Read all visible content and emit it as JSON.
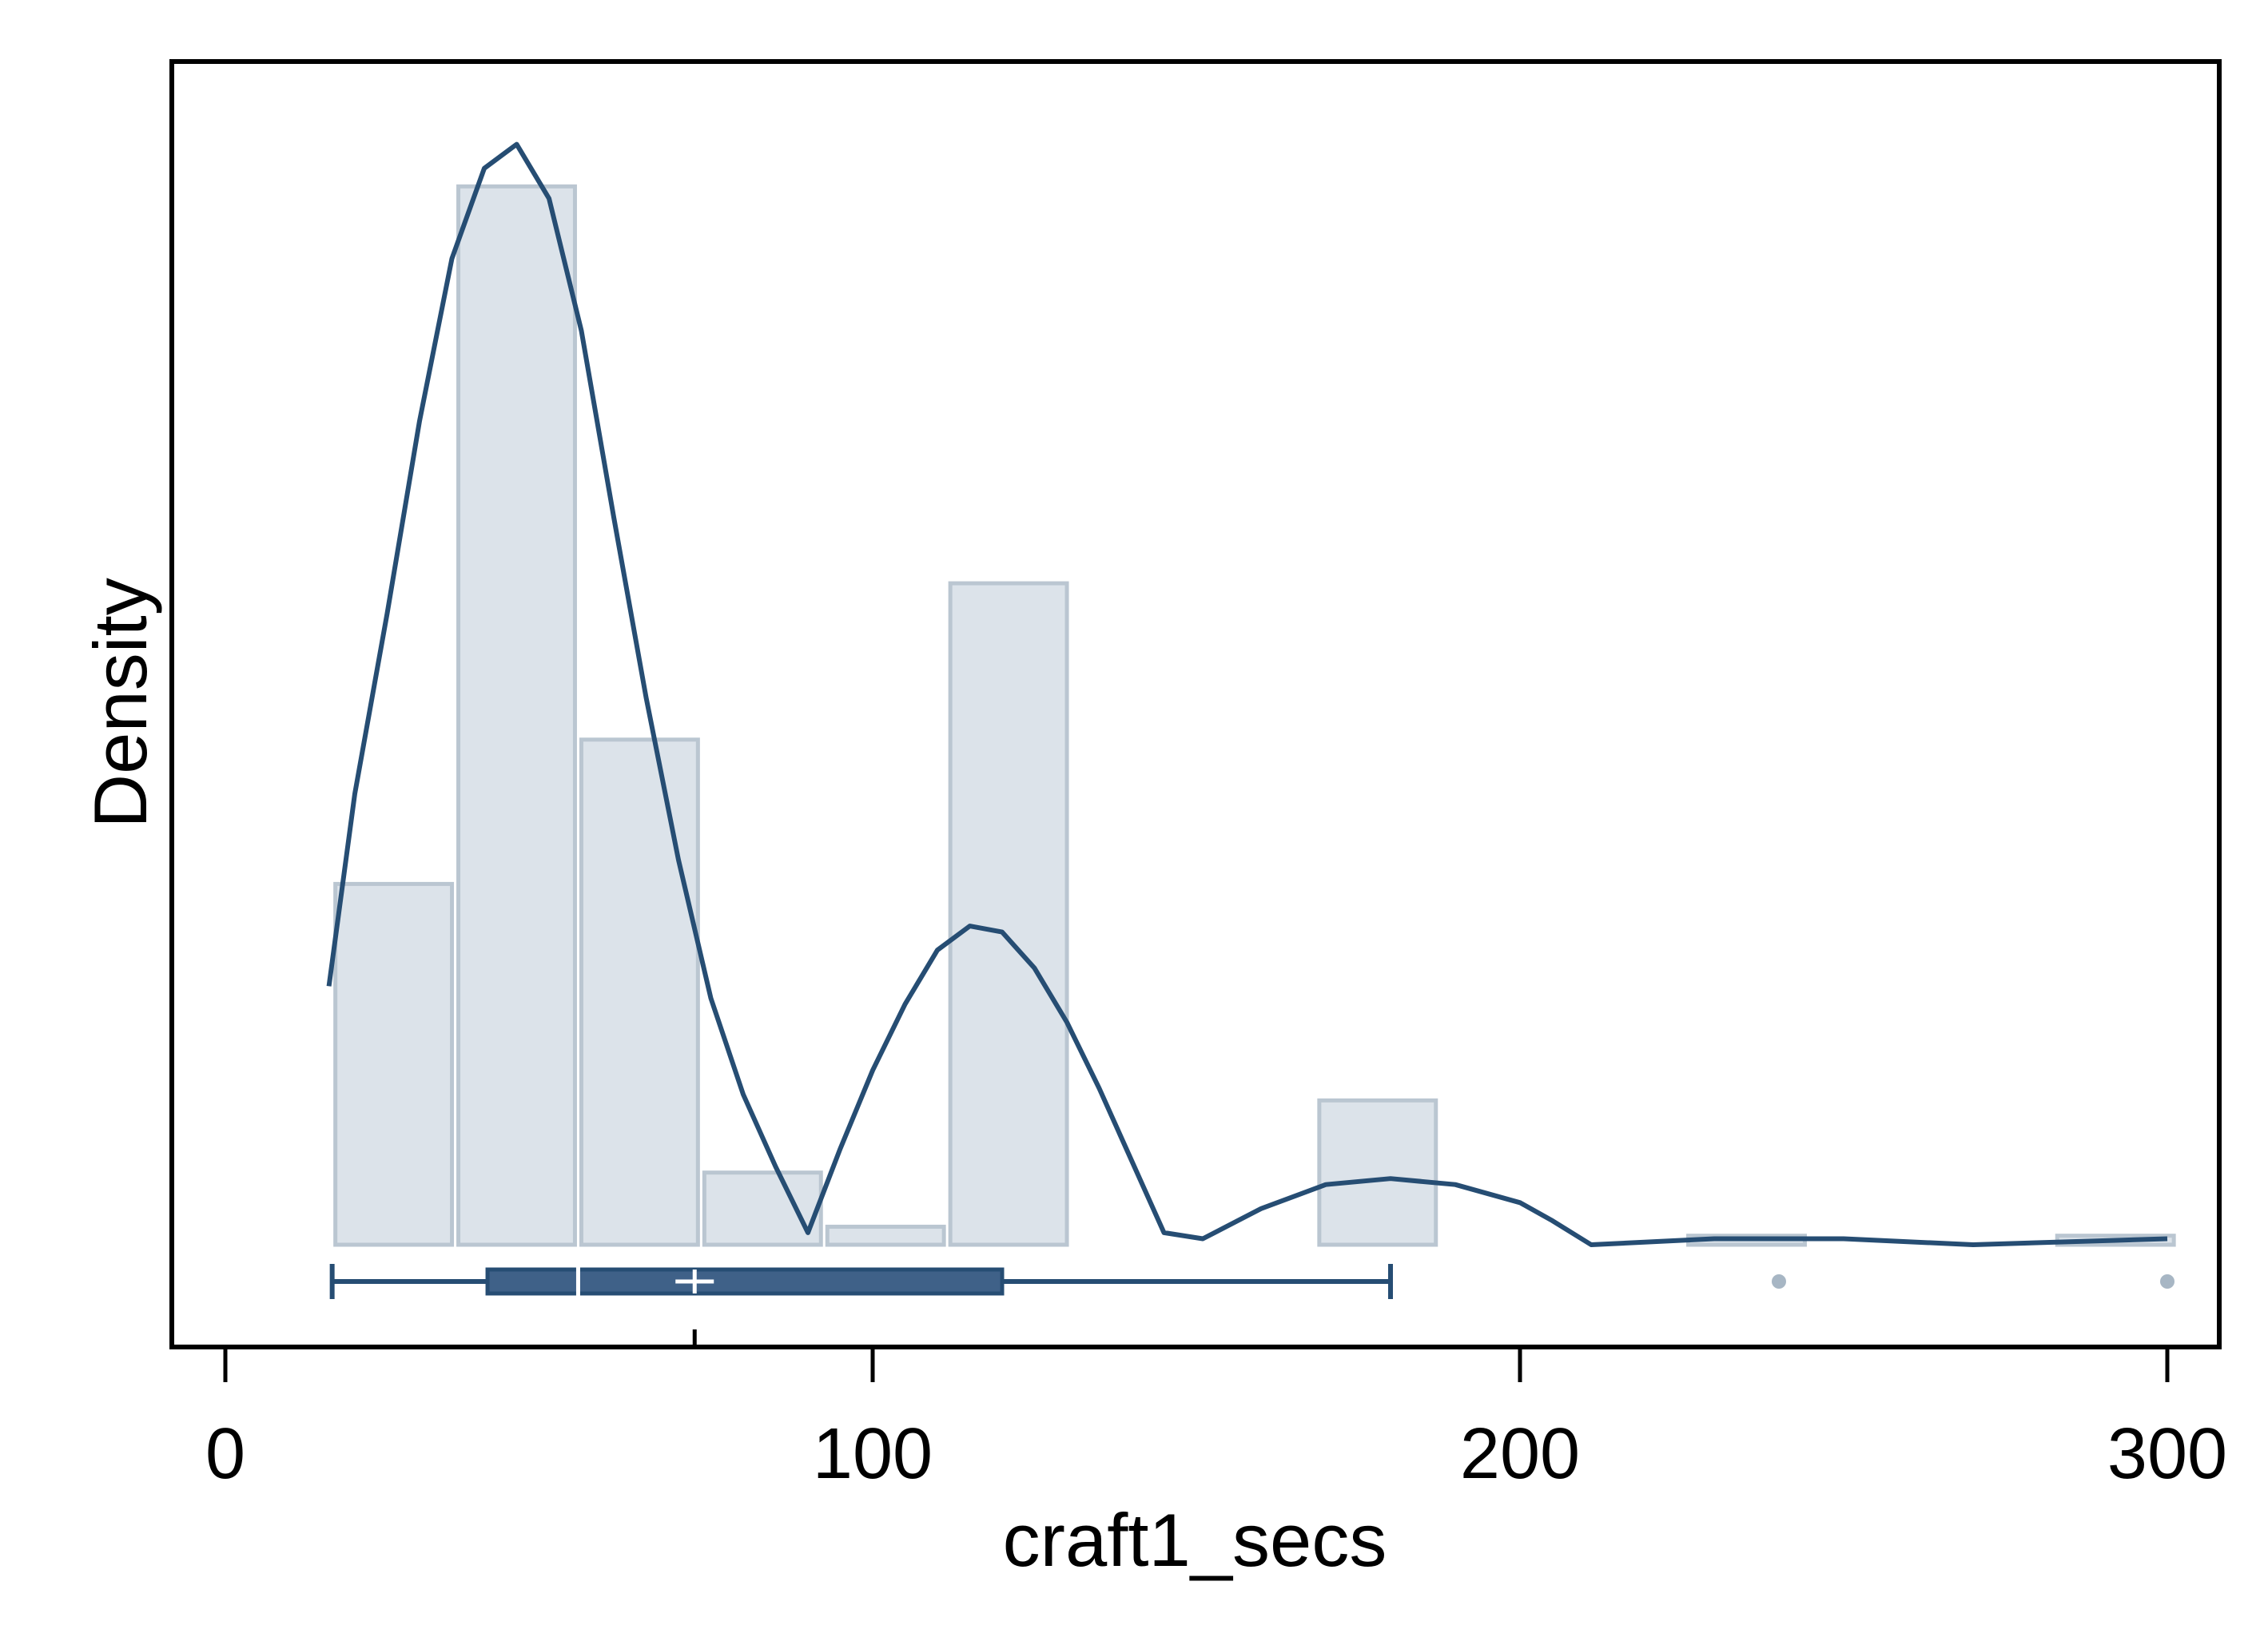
{
  "chart_data": {
    "type": "histogram",
    "xlabel": "craft1_secs",
    "ylabel": "Density",
    "xlim": [
      -8,
      308
    ],
    "x_ticks": [
      0,
      100,
      200,
      300
    ],
    "x_tick_labels": [
      "0",
      "100",
      "200",
      "300"
    ],
    "y_tick_labels_shown": false,
    "grid": false,
    "legend": "none",
    "histogram": {
      "bins": [
        {
          "start": 16.5,
          "end": 35.5,
          "density": 0.006
        },
        {
          "start": 35.5,
          "end": 54.5,
          "density": 0.0176
        },
        {
          "start": 54.5,
          "end": 73.5,
          "density": 0.0084
        },
        {
          "start": 73.5,
          "end": 92.5,
          "density": 0.0012
        },
        {
          "start": 92.5,
          "end": 111.5,
          "density": 0.0003
        },
        {
          "start": 111.5,
          "end": 130.5,
          "density": 0.011
        },
        {
          "start": 130.5,
          "end": 149.5,
          "density": 0.0
        },
        {
          "start": 149.5,
          "end": 168.5,
          "density": 0.0
        },
        {
          "start": 168.5,
          "end": 187.5,
          "density": 0.0024
        },
        {
          "start": 187.5,
          "end": 206.5,
          "density": 0.0
        },
        {
          "start": 206.5,
          "end": 225.5,
          "density": 0.0
        },
        {
          "start": 225.5,
          "end": 244.5,
          "density": 0.00015
        },
        {
          "start": 244.5,
          "end": 263.5,
          "density": 0.0
        },
        {
          "start": 263.5,
          "end": 282.5,
          "density": 0.0
        },
        {
          "start": 282.5,
          "end": 301.5,
          "density": 0.00015
        }
      ]
    },
    "density_curve": {
      "x": [
        16,
        20,
        25,
        30,
        35,
        40,
        45,
        50,
        55,
        60,
        65,
        70,
        75,
        80,
        85,
        90,
        95,
        100,
        105,
        110,
        115,
        120,
        125,
        130,
        135,
        140,
        145,
        151,
        160,
        170,
        180,
        190,
        200,
        205,
        211,
        230,
        250,
        270,
        300
      ],
      "y": [
        0.0043,
        0.0075,
        0.0105,
        0.0137,
        0.0164,
        0.0179,
        0.0183,
        0.0174,
        0.0152,
        0.0121,
        0.0091,
        0.0064,
        0.0041,
        0.0025,
        0.0013,
        0.0002,
        0.0016,
        0.0029,
        0.004,
        0.0049,
        0.0053,
        0.0052,
        0.0046,
        0.0037,
        0.0026,
        0.0014,
        0.0002,
        0.0001,
        0.0006,
        0.001,
        0.0011,
        0.001,
        0.0007,
        0.0004,
        0.0,
        0.0001,
        0.0001,
        0.0,
        0.0001
      ]
    },
    "boxplot": {
      "whisker_low": 16.5,
      "q1": 40.5,
      "median": 54.5,
      "mean": 72.5,
      "q3": 120,
      "whisker_high": 180,
      "outliers": [
        240,
        300
      ]
    },
    "y_max": 0.0188,
    "colors": {
      "bar_fill": "#dce3ea",
      "bar_stroke": "#bac6d1",
      "curve": "#264d73",
      "box_fill": "#3f6188",
      "box_stroke": "#264d73",
      "outlier": "#a7b6c4",
      "frame": "#000000"
    }
  }
}
